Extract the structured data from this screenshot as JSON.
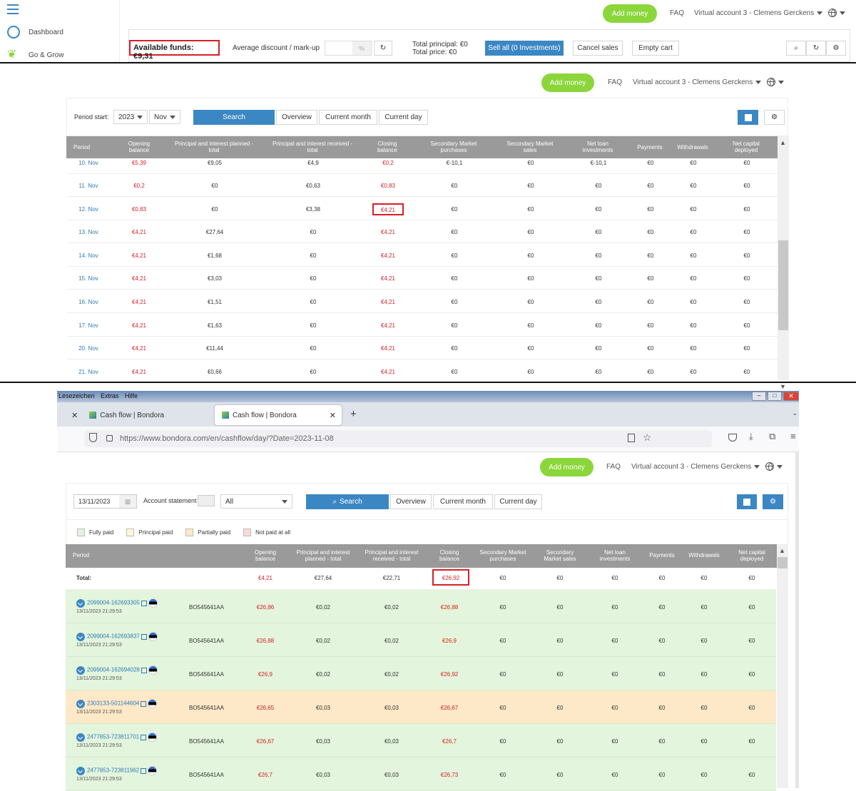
{
  "top": {
    "nav": [
      "Dashboard",
      "Go & Grow"
    ],
    "add_money": "Add money",
    "faq": "FAQ",
    "account": "Virtual account 3 - Clemens Gerckens",
    "available_funds": "Available funds: €9,31",
    "avg_discount": "Average discount / mark-up",
    "percent": "%",
    "total_principal": "Total principal: €0",
    "total_price": "Total price: €0",
    "sell_all": "Sell all (0 Investments)",
    "cancel_sales": "Cancel sales",
    "empty_cart": "Empty cart"
  },
  "panel1": {
    "period_start": "Period start:",
    "year": "2023",
    "month": "Nov",
    "search": "Search",
    "overview": "Overview",
    "current_month": "Current month",
    "current_day": "Current day",
    "headers": [
      "Period",
      "Opening balance",
      "Principal and interest planned - total",
      "Principal and interest received - total",
      "Closing balance",
      "Secondary Market purchases",
      "Secondary Market sales",
      "Net loan investments",
      "Payments",
      "Withdrawals",
      "Net capital deployed"
    ],
    "rows": [
      [
        "10. Nov",
        "€5,39",
        "€9,05",
        "€4,9",
        "€0,2",
        "€-10,1",
        "€0",
        "€-10,1",
        "€0",
        "€0",
        "€0"
      ],
      [
        "11. Nov",
        "€0,2",
        "€0",
        "€0,63",
        "€0,83",
        "€0",
        "€0",
        "€0",
        "€0",
        "€0",
        "€0"
      ],
      [
        "12. Nov",
        "€0,83",
        "€0",
        "€3,38",
        "€4,21",
        "€0",
        "€0",
        "€0",
        "€0",
        "€0",
        "€0"
      ],
      [
        "13. Nov",
        "€4,21",
        "€27,64",
        "€0",
        "€4,21",
        "€0",
        "€0",
        "€0",
        "€0",
        "€0",
        "€0"
      ],
      [
        "14. Nov",
        "€4,21",
        "€1,68",
        "€0",
        "€4,21",
        "€0",
        "€0",
        "€0",
        "€0",
        "€0",
        "€0"
      ],
      [
        "15. Nov",
        "€4,21",
        "€3,03",
        "€0",
        "€4,21",
        "€0",
        "€0",
        "€0",
        "€0",
        "€0",
        "€0"
      ],
      [
        "16. Nov",
        "€4,21",
        "€1,51",
        "€0",
        "€4,21",
        "€0",
        "€0",
        "€0",
        "€0",
        "€0",
        "€0"
      ],
      [
        "17. Nov",
        "€4,21",
        "€1,63",
        "€0",
        "€4,21",
        "€0",
        "€0",
        "€0",
        "€0",
        "€0",
        "€0"
      ],
      [
        "20. Nov",
        "€4,21",
        "€11,44",
        "€0",
        "€4,21",
        "€0",
        "€0",
        "€0",
        "€0",
        "€0",
        "€0"
      ],
      [
        "21. Nov",
        "€4,21",
        "€0,66",
        "€0",
        "€4,21",
        "€0",
        "€0",
        "€0",
        "€0",
        "€0",
        "€0"
      ]
    ]
  },
  "browser": {
    "menu": [
      "Lesezeichen",
      "Extras",
      "Hilfe"
    ],
    "tab1": "Cash flow | Bondora",
    "tab2": "Cash flow | Bondora",
    "url": "https://www.bondora.com/en/cashflow/day/?Date=2023-11-08"
  },
  "panel2": {
    "date": "13/11/2023",
    "account_statement": "Account statement",
    "filter": "All",
    "search": "Search",
    "overview": "Overview",
    "current_month": "Current month",
    "current_day": "Current day",
    "legend": [
      "Fully paid",
      "Principal paid",
      "Partially paid",
      "Not paid at all"
    ],
    "legend_colors": [
      "#e3f5dc",
      "#fdf7d8",
      "#fde8c7",
      "#fbdada"
    ],
    "headers": [
      "Period",
      "Opening balance",
      "Principal and interest planned - total",
      "Principal and interest received - total",
      "Closing balance",
      "Secondary Market purchases",
      "Secondary Market sales",
      "Net loan investments",
      "Payments",
      "Withdrawals",
      "Net capital deployed"
    ],
    "total": [
      "Total:",
      "€4,21",
      "€27,64",
      "€22,71",
      "€26,92",
      "€0",
      "€0",
      "€0",
      "€0",
      "€0",
      "€0"
    ],
    "rows": [
      {
        "id": "2099004-162693305",
        "time": "13/11/2023 21:29:53",
        "code": "BO545641AA",
        "vals": [
          "€26,86",
          "€0,02",
          "€0,02",
          "€26,88",
          "€0",
          "€0",
          "€0",
          "€0",
          "€0",
          "€0"
        ],
        "status": "Fully paid"
      },
      {
        "id": "2099004-162693837",
        "time": "13/11/2023 21:29:53",
        "code": "BO545641AA",
        "vals": [
          "€26,88",
          "€0,02",
          "€0,02",
          "€26,9",
          "€0",
          "€0",
          "€0",
          "€0",
          "€0",
          "€0"
        ],
        "status": "Fully paid"
      },
      {
        "id": "2099004-162694028",
        "time": "13/11/2023 21:29:53",
        "code": "BO545641AA",
        "vals": [
          "€26,9",
          "€0,02",
          "€0,02",
          "€26,92",
          "€0",
          "€0",
          "€0",
          "€0",
          "€0",
          "€0"
        ],
        "status": "Fully paid"
      },
      {
        "id": "2303133-501144604",
        "time": "13/11/2023 21:29:53",
        "code": "BO545641AA",
        "vals": [
          "€26,65",
          "€0,03",
          "€0,03",
          "€26,67",
          "€0",
          "€0",
          "€0",
          "€0",
          "€0",
          "€0"
        ],
        "status": "Partially paid"
      },
      {
        "id": "2477853-723811701",
        "time": "13/11/2023 21:29:53",
        "code": "BO545641AA",
        "vals": [
          "€26,67",
          "€0,03",
          "€0,03",
          "€26,7",
          "€0",
          "€0",
          "€0",
          "€0",
          "€0",
          "€0"
        ],
        "status": "Fully paid"
      },
      {
        "id": "2477853-723811962",
        "time": "13/11/2023 21:29:53",
        "code": "BO545641AA",
        "vals": [
          "€26,7",
          "€0,03",
          "€0,03",
          "€26,73",
          "€0",
          "€0",
          "€0",
          "€0",
          "€0",
          "€0"
        ],
        "status": "Fully paid"
      }
    ]
  }
}
